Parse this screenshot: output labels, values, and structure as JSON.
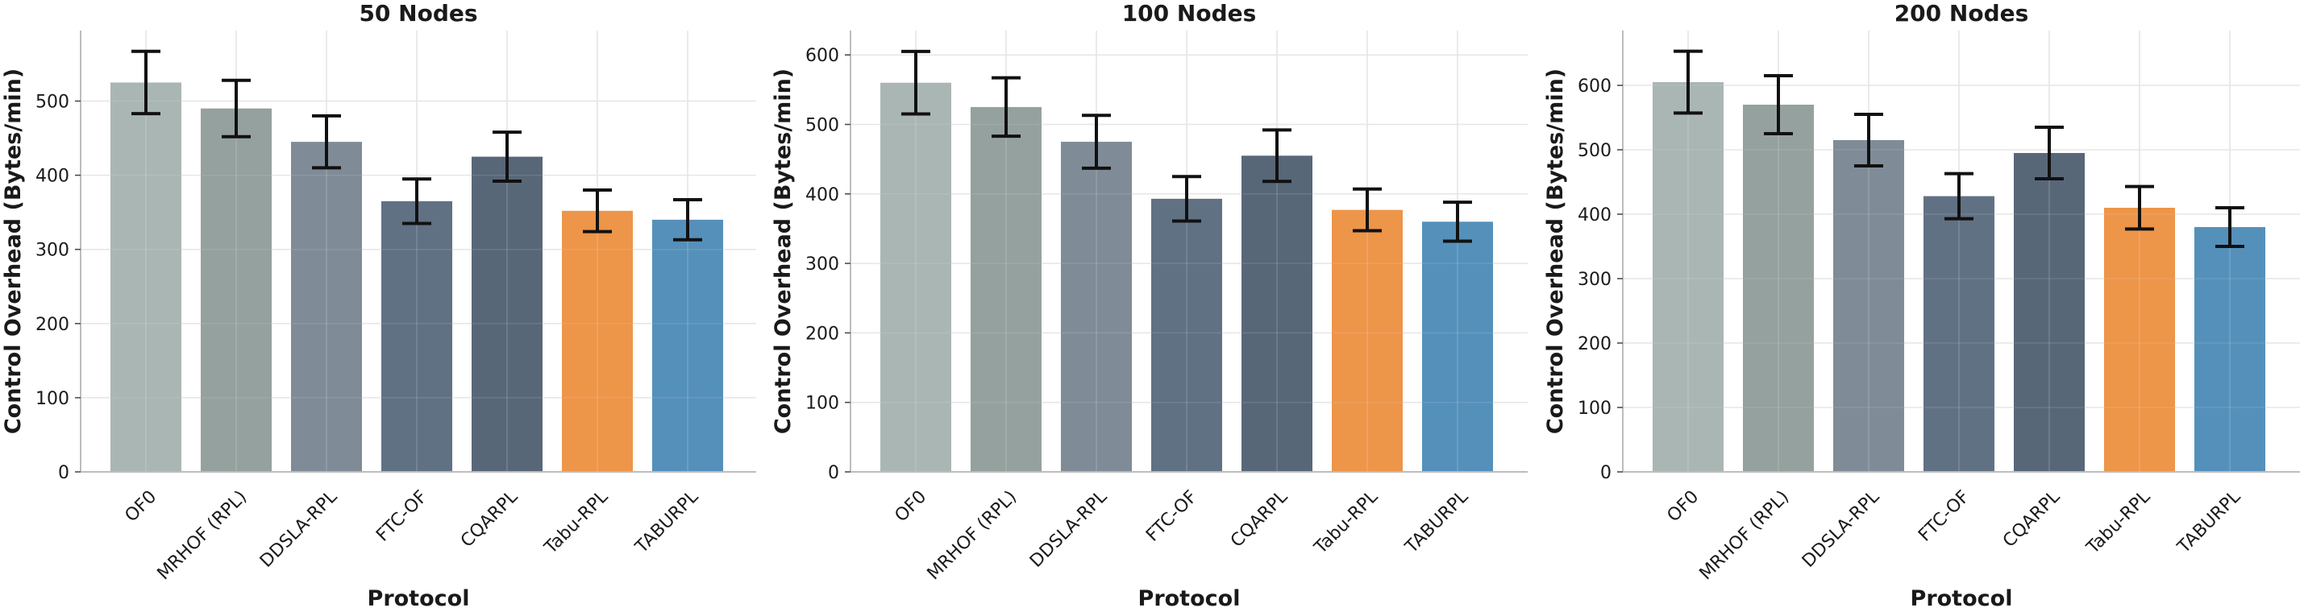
{
  "chart_data": [
    {
      "type": "bar",
      "title": "50 Nodes",
      "xlabel": "Protocol",
      "ylabel": "Control Overhead (Bytes/min)",
      "categories": [
        "OF0",
        "MRHOF (RPL)",
        "DDSLA-RPL",
        "FTC-OF",
        "CQARPL",
        "Tabu-RPL",
        "TABURPL"
      ],
      "values": [
        525,
        490,
        445,
        365,
        425,
        352,
        340
      ],
      "errors": [
        42,
        38,
        35,
        30,
        33,
        28,
        27
      ],
      "ylim": [
        0,
        595
      ],
      "yticks": [
        0,
        100,
        200,
        300,
        400,
        500
      ],
      "grid": true
    },
    {
      "type": "bar",
      "title": "100 Nodes",
      "xlabel": "Protocol",
      "ylabel": "Control Overhead (Bytes/min)",
      "categories": [
        "OF0",
        "MRHOF (RPL)",
        "DDSLA-RPL",
        "FTC-OF",
        "CQARPL",
        "Tabu-RPL",
        "TABURPL"
      ],
      "values": [
        560,
        525,
        475,
        393,
        455,
        377,
        360
      ],
      "errors": [
        45,
        42,
        38,
        32,
        37,
        30,
        28
      ],
      "ylim": [
        0,
        635
      ],
      "yticks": [
        0,
        100,
        200,
        300,
        400,
        500,
        600
      ],
      "grid": true
    },
    {
      "type": "bar",
      "title": "200 Nodes",
      "xlabel": "Protocol",
      "ylabel": "Control Overhead (Bytes/min)",
      "categories": [
        "OF0",
        "MRHOF (RPL)",
        "DDSLA-RPL",
        "FTC-OF",
        "CQARPL",
        "Tabu-RPL",
        "TABURPL"
      ],
      "values": [
        605,
        570,
        515,
        428,
        495,
        410,
        380
      ],
      "errors": [
        48,
        45,
        40,
        35,
        40,
        33,
        30
      ],
      "ylim": [
        0,
        685
      ],
      "yticks": [
        0,
        100,
        200,
        300,
        400,
        500,
        600
      ],
      "grid": true
    }
  ],
  "colors": [
    "#a3b0ae",
    "#8c9996",
    "#74828e",
    "#54657a",
    "#4a5a6c",
    "#eb8c3a",
    "#4687b4"
  ]
}
